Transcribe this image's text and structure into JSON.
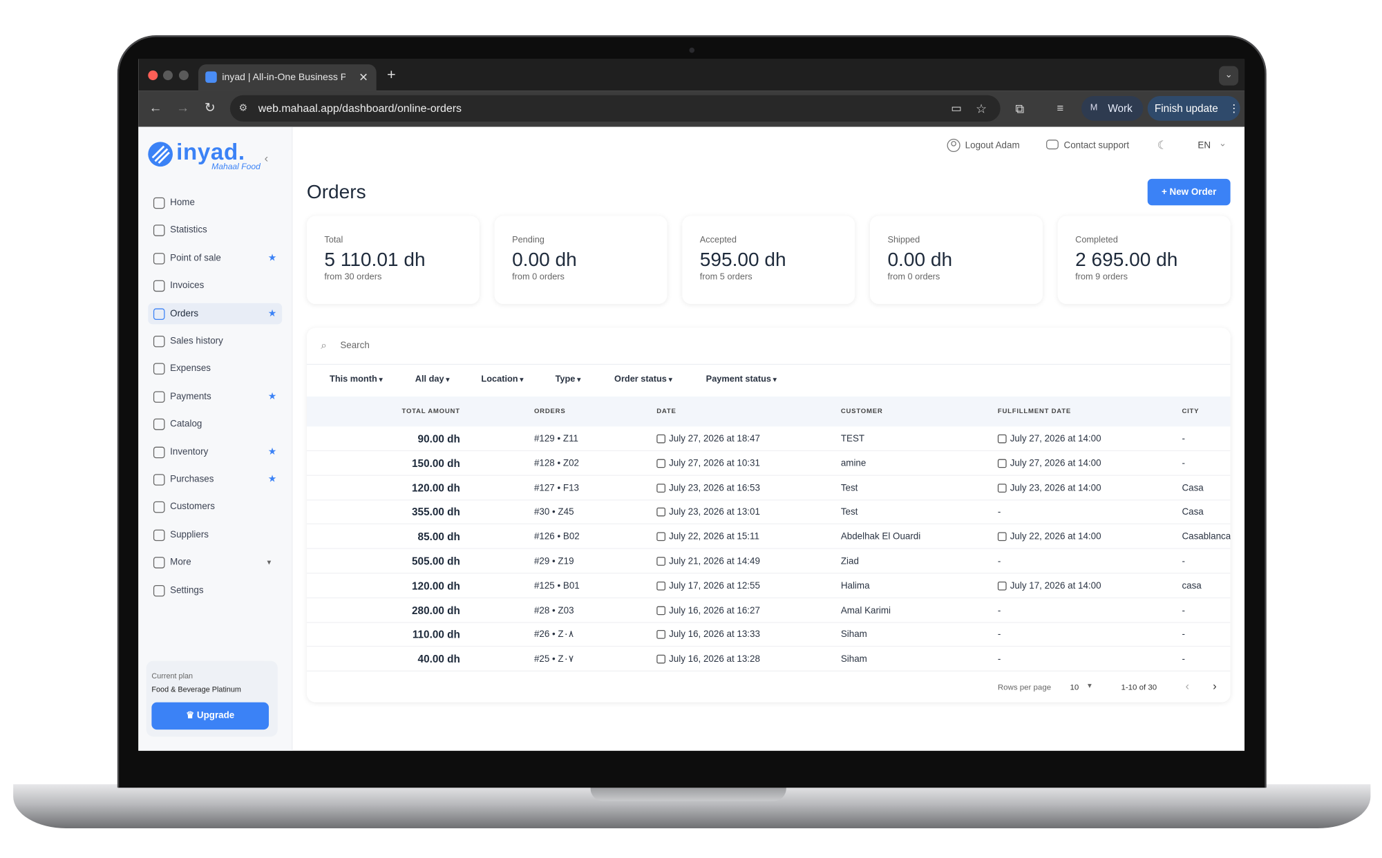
{
  "browser": {
    "tab_title": "inyad | All-in-One Business P",
    "url": "web.mahaal.app/dashboard/online-orders",
    "profile_initial": "M",
    "profile": "Work",
    "update": "Finish update"
  },
  "sidebar": {
    "logo": "inyad.",
    "logo_sub": "Mahaal Food",
    "nav": [
      {
        "label": "Home",
        "starred": false
      },
      {
        "label": "Statistics",
        "starred": false
      },
      {
        "label": "Point of sale",
        "starred": true
      },
      {
        "label": "Invoices",
        "starred": false
      },
      {
        "label": "Orders",
        "starred": true,
        "active": true
      },
      {
        "label": "Sales history",
        "starred": false
      },
      {
        "label": "Expenses",
        "starred": false
      },
      {
        "label": "Payments",
        "starred": true
      },
      {
        "label": "Catalog",
        "starred": false
      },
      {
        "label": "Inventory",
        "starred": true
      },
      {
        "label": "Purchases",
        "starred": true
      },
      {
        "label": "Customers",
        "starred": false
      },
      {
        "label": "Suppliers",
        "starred": false
      },
      {
        "label": "More",
        "starred": false,
        "expandable": true
      },
      {
        "label": "Settings",
        "starred": false
      }
    ],
    "plan_label": "Current plan",
    "plan_name": "Food & Beverage Platinum",
    "upgrade": "Upgrade"
  },
  "topbar": {
    "logout": "Logout Adam",
    "support": "Contact support",
    "language": "EN"
  },
  "page": {
    "title": "Orders",
    "new_order": "New Order"
  },
  "stats": [
    {
      "label": "Total",
      "amount": "5 110.01 dh",
      "count": "from 30 orders"
    },
    {
      "label": "Pending",
      "amount": "0.00 dh",
      "count": "from 0 orders"
    },
    {
      "label": "Accepted",
      "amount": "595.00 dh",
      "count": "from 5 orders"
    },
    {
      "label": "Shipped",
      "amount": "0.00 dh",
      "count": "from 0 orders"
    },
    {
      "label": "Completed",
      "amount": "2 695.00 dh",
      "count": "from 9 orders"
    }
  ],
  "search_placeholder": "Search",
  "filters": [
    "This month",
    "All day",
    "Location",
    "Type",
    "Order status",
    "Payment status"
  ],
  "table": {
    "columns": [
      "TOTAL AMOUNT",
      "ORDERS",
      "DATE",
      "CUSTOMER",
      "FULFILLMENT DATE",
      "CITY"
    ],
    "rows": [
      {
        "total": "90.00 dh",
        "order": "#129 • Z11",
        "date": "July 27, 2026 at 18:47",
        "customer": "TEST",
        "fulfillment": "July 27, 2026 at 14:00",
        "city": "-"
      },
      {
        "total": "150.00 dh",
        "order": "#128 • Z02",
        "date": "July 27, 2026 at 10:31",
        "customer": "amine",
        "fulfillment": "July 27, 2026 at 14:00",
        "city": "-"
      },
      {
        "total": "120.00 dh",
        "order": "#127 • F13",
        "date": "July 23, 2026 at 16:53",
        "customer": "Test",
        "fulfillment": "July 23, 2026 at 14:00",
        "city": "Casa"
      },
      {
        "total": "355.00 dh",
        "order": "#30 • Z45",
        "date": "July 23, 2026 at 13:01",
        "customer": "Test",
        "fulfillment": "-",
        "city": "Casa"
      },
      {
        "total": "85.00 dh",
        "order": "#126 • B02",
        "date": "July 22, 2026 at 15:11",
        "customer": "Abdelhak El Ouardi",
        "fulfillment": "July 22, 2026 at 14:00",
        "city": "Casablanca"
      },
      {
        "total": "505.00 dh",
        "order": "#29 • Z19",
        "date": "July 21, 2026 at 14:49",
        "customer": "Ziad",
        "fulfillment": "-",
        "city": "-"
      },
      {
        "total": "120.00 dh",
        "order": "#125 • B01",
        "date": "July 17, 2026 at 12:55",
        "customer": "Halima",
        "fulfillment": "July 17, 2026 at 14:00",
        "city": "casa"
      },
      {
        "total": "280.00 dh",
        "order": "#28 • Z03",
        "date": "July 16, 2026 at 16:27",
        "customer": "Amal Karimi",
        "fulfillment": "-",
        "city": "-"
      },
      {
        "total": "110.00 dh",
        "order": "#26 • Z٠٨",
        "date": "July 16, 2026 at 13:33",
        "customer": "Siham",
        "fulfillment": "-",
        "city": "-"
      },
      {
        "total": "40.00 dh",
        "order": "#25 • Z٠٧",
        "date": "July 16, 2026 at 13:28",
        "customer": "Siham",
        "fulfillment": "-",
        "city": "-"
      }
    ]
  },
  "pagination": {
    "rows_per_page_label": "Rows per page",
    "rows_per_page": 10,
    "range": "1-10 of 30"
  }
}
